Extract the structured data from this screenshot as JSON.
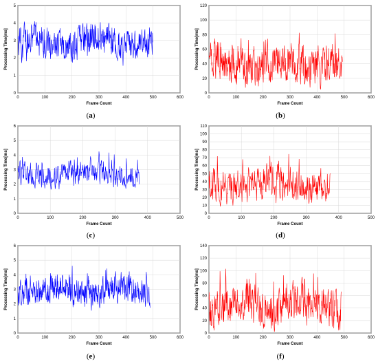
{
  "captions": [
    "(a)",
    "(b)",
    "(c)",
    "(d)",
    "(e)",
    "(f)"
  ],
  "chart_data": [
    {
      "type": "line",
      "panel": "a",
      "xlabel": "Frame Count",
      "ylabel": "Processing Time[ms]",
      "xlim": [
        0,
        600
      ],
      "ylim": [
        0,
        5
      ],
      "xticks": [
        0,
        100,
        200,
        300,
        400,
        500,
        600
      ],
      "yticks": [
        0,
        1,
        2,
        3,
        4,
        5
      ],
      "grid": true,
      "color": "#0000ff",
      "series": [
        {
          "frames": 500,
          "base": 2.9,
          "amplitude": 0.75,
          "min": 1.2,
          "max": 4.6
        }
      ]
    },
    {
      "type": "line",
      "panel": "b",
      "xlabel": "Frame Count",
      "ylabel": "Processing Time[ms]",
      "xlim": [
        0,
        600
      ],
      "ylim": [
        0,
        120
      ],
      "xticks": [
        0,
        100,
        200,
        300,
        400,
        500,
        600
      ],
      "yticks": [
        0,
        20,
        40,
        60,
        80,
        100,
        120
      ],
      "grid": true,
      "color": "#ff0000",
      "series": [
        {
          "frames": 495,
          "base": 40,
          "amplitude": 22,
          "min": 2,
          "max": 95
        }
      ]
    },
    {
      "type": "line",
      "panel": "c",
      "xlabel": "Frame Count",
      "ylabel": "Processing Time[ms]",
      "xlim": [
        0,
        500
      ],
      "ylim": [
        0,
        6
      ],
      "xticks": [
        0,
        100,
        200,
        300,
        400,
        500
      ],
      "yticks": [
        0,
        1,
        2,
        3,
        4,
        5,
        6
      ],
      "grid": true,
      "color": "#0000ff",
      "series": [
        {
          "frames": 375,
          "base": 2.7,
          "amplitude": 0.7,
          "min": 1.2,
          "max": 4.9
        }
      ]
    },
    {
      "type": "line",
      "panel": "d",
      "xlabel": "Frame Count",
      "ylabel": "Processing Time[ms]",
      "xlim": [
        0,
        500
      ],
      "ylim": [
        0,
        110
      ],
      "xticks": [
        0,
        100,
        200,
        300,
        400,
        500
      ],
      "yticks": [
        0,
        10,
        20,
        30,
        40,
        50,
        60,
        70,
        80,
        90,
        100,
        110
      ],
      "grid": true,
      "color": "#ff0000",
      "series": [
        {
          "frames": 375,
          "base": 38,
          "amplitude": 18,
          "min": 2,
          "max": 95
        }
      ]
    },
    {
      "type": "line",
      "panel": "e",
      "xlabel": "Frame Count",
      "ylabel": "Processing Time[ms]",
      "xlim": [
        0,
        600
      ],
      "ylim": [
        0,
        6
      ],
      "xticks": [
        0,
        100,
        200,
        300,
        400,
        500,
        600
      ],
      "yticks": [
        0,
        1,
        2,
        3,
        4,
        5,
        6
      ],
      "grid": true,
      "color": "#0000ff",
      "series": [
        {
          "frames": 490,
          "base": 2.9,
          "amplitude": 0.8,
          "min": 1.3,
          "max": 5.1
        }
      ]
    },
    {
      "type": "line",
      "panel": "f",
      "xlabel": "Frame Count",
      "ylabel": "Processing Time[ms]",
      "xlim": [
        0,
        600
      ],
      "ylim": [
        0,
        140
      ],
      "xticks": [
        0,
        100,
        200,
        300,
        400,
        500,
        600
      ],
      "yticks": [
        0,
        20,
        40,
        60,
        80,
        100,
        120,
        140
      ],
      "grid": true,
      "color": "#ff0000",
      "series": [
        {
          "frames": 490,
          "base": 45,
          "amplitude": 25,
          "min": 2,
          "max": 125
        }
      ]
    }
  ]
}
